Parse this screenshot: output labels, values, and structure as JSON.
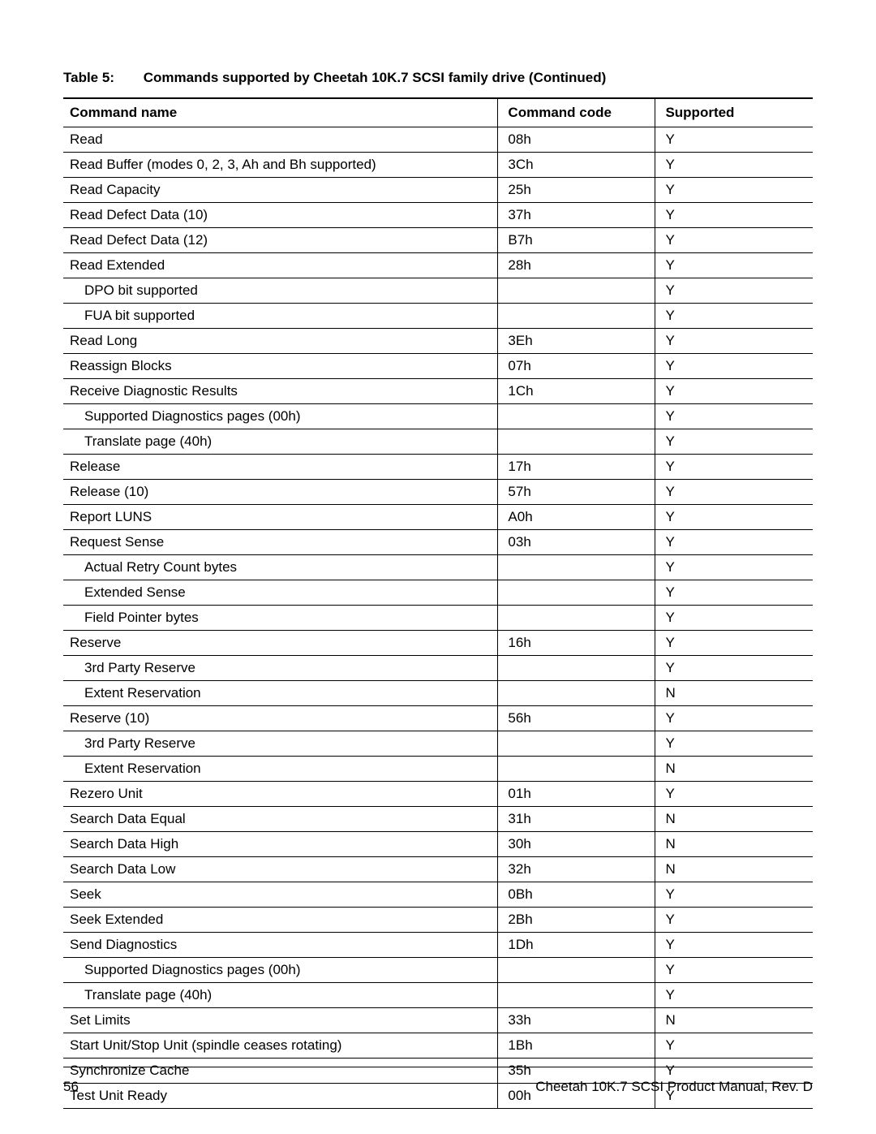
{
  "caption": {
    "number": "Table 5:",
    "title": "Commands supported by Cheetah 10K.7 SCSI family drive (Continued)"
  },
  "columns": {
    "name": "Command name",
    "code": "Command code",
    "supported": "Supported"
  },
  "rows": [
    {
      "name": "Read",
      "code": "08h",
      "supported": "Y",
      "indent": 0
    },
    {
      "name": "Read Buffer (modes 0, 2, 3, Ah and Bh supported)",
      "code": "3Ch",
      "supported": "Y",
      "indent": 0
    },
    {
      "name": "Read Capacity",
      "code": "25h",
      "supported": "Y",
      "indent": 0
    },
    {
      "name": "Read Defect Data (10)",
      "code": "37h",
      "supported": "Y",
      "indent": 0
    },
    {
      "name": "Read Defect Data (12)",
      "code": "B7h",
      "supported": "Y",
      "indent": 0
    },
    {
      "name": "Read Extended",
      "code": "28h",
      "supported": "Y",
      "indent": 0
    },
    {
      "name": "DPO bit supported",
      "code": "",
      "supported": "Y",
      "indent": 1
    },
    {
      "name": "FUA bit supported",
      "code": "",
      "supported": "Y",
      "indent": 1
    },
    {
      "name": "Read Long",
      "code": "3Eh",
      "supported": "Y",
      "indent": 0
    },
    {
      "name": "Reassign Blocks",
      "code": "07h",
      "supported": "Y",
      "indent": 0
    },
    {
      "name": "Receive Diagnostic Results",
      "code": "1Ch",
      "supported": "Y",
      "indent": 0
    },
    {
      "name": "Supported Diagnostics pages (00h)",
      "code": "",
      "supported": "Y",
      "indent": 1
    },
    {
      "name": "Translate page (40h)",
      "code": "",
      "supported": "Y",
      "indent": 1
    },
    {
      "name": "Release",
      "code": "17h",
      "supported": "Y",
      "indent": 0
    },
    {
      "name": "Release (10)",
      "code": "57h",
      "supported": "Y",
      "indent": 0
    },
    {
      "name": "Report LUNS",
      "code": "A0h",
      "supported": "Y",
      "indent": 0
    },
    {
      "name": "Request Sense",
      "code": "03h",
      "supported": "Y",
      "indent": 0
    },
    {
      "name": "Actual Retry Count bytes",
      "code": "",
      "supported": "Y",
      "indent": 1
    },
    {
      "name": "Extended Sense",
      "code": "",
      "supported": "Y",
      "indent": 1
    },
    {
      "name": "Field Pointer bytes",
      "code": "",
      "supported": "Y",
      "indent": 1
    },
    {
      "name": "Reserve",
      "code": "16h",
      "supported": "Y",
      "indent": 0
    },
    {
      "name": "3rd Party Reserve",
      "code": "",
      "supported": "Y",
      "indent": 1
    },
    {
      "name": "Extent Reservation",
      "code": "",
      "supported": "N",
      "indent": 1
    },
    {
      "name": "Reserve (10)",
      "code": "56h",
      "supported": "Y",
      "indent": 0
    },
    {
      "name": "3rd Party Reserve",
      "code": "",
      "supported": "Y",
      "indent": 1
    },
    {
      "name": "Extent Reservation",
      "code": "",
      "supported": "N",
      "indent": 1
    },
    {
      "name": "Rezero Unit",
      "code": "01h",
      "supported": "Y",
      "indent": 0
    },
    {
      "name": "Search Data Equal",
      "code": "31h",
      "supported": "N",
      "indent": 0
    },
    {
      "name": "Search Data High",
      "code": "30h",
      "supported": "N",
      "indent": 0
    },
    {
      "name": "Search Data Low",
      "code": "32h",
      "supported": "N",
      "indent": 0
    },
    {
      "name": "Seek",
      "code": "0Bh",
      "supported": "Y",
      "indent": 0
    },
    {
      "name": "Seek Extended",
      "code": "2Bh",
      "supported": "Y",
      "indent": 0
    },
    {
      "name": "Send Diagnostics",
      "code": "1Dh",
      "supported": "Y",
      "indent": 0
    },
    {
      "name": "Supported Diagnostics pages (00h)",
      "code": "",
      "supported": "Y",
      "indent": 1
    },
    {
      "name": "Translate page (40h)",
      "code": "",
      "supported": "Y",
      "indent": 1
    },
    {
      "name": "Set Limits",
      "code": "33h",
      "supported": "N",
      "indent": 0
    },
    {
      "name": "Start Unit/Stop Unit (spindle ceases rotating)",
      "code": "1Bh",
      "supported": "Y",
      "indent": 0
    },
    {
      "name": "Synchronize Cache",
      "code": "35h",
      "supported": "Y",
      "indent": 0
    },
    {
      "name": "Test Unit Ready",
      "code": "00h",
      "supported": "Y",
      "indent": 0
    }
  ],
  "footer": {
    "page": "56",
    "doc": "Cheetah 10K.7 SCSI Product Manual, Rev. D"
  }
}
